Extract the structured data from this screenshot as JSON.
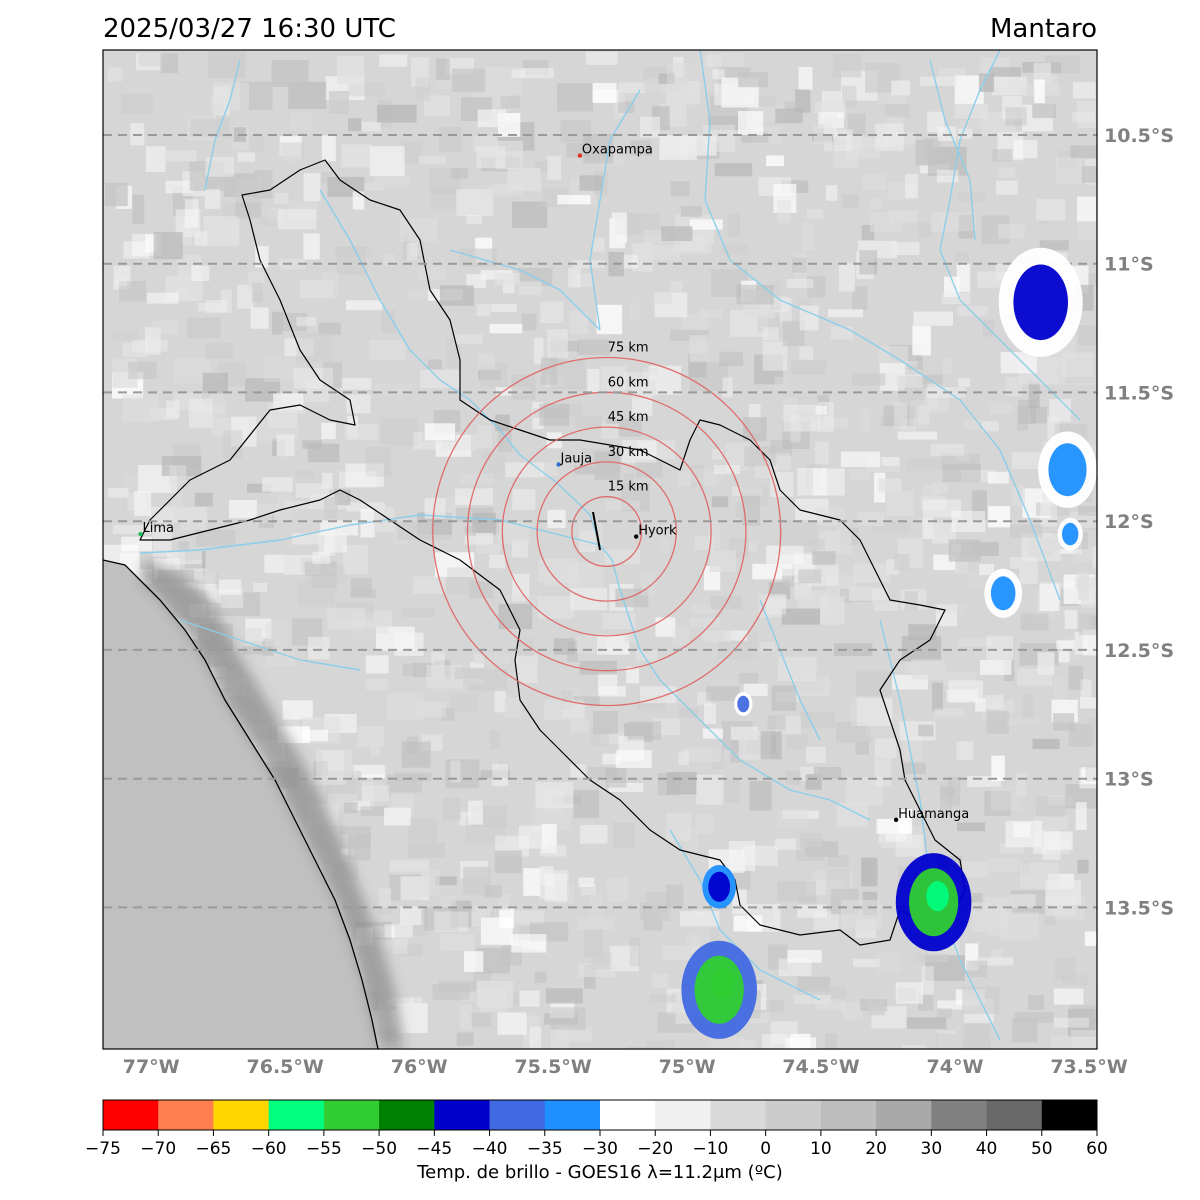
{
  "header": {
    "timestamp": "2025/03/27 16:30 UTC",
    "region": "Mantaro"
  },
  "map": {
    "lon_range": [
      -77.18,
      -73.47
    ],
    "lat_range": [
      -14.05,
      -10.17
    ],
    "lat_gridlines": [
      -10.5,
      -11.0,
      -11.5,
      -12.0,
      -12.5,
      -13.0,
      -13.5
    ],
    "lat_labels": [
      "10.5°S",
      "11°S",
      "11.5°S",
      "12°S",
      "12.5°S",
      "13°S",
      "13.5°S"
    ],
    "lon_ticks": [
      -77.0,
      -76.5,
      -76.0,
      -75.5,
      -75.0,
      -74.5,
      -74.0,
      -73.5
    ],
    "lon_labels": [
      "77°W",
      "76.5°W",
      "76°W",
      "75.5°W",
      "75°W",
      "74.5°W",
      "74°W",
      "73.5°W"
    ],
    "cities": [
      {
        "name": "Oxapampa",
        "lon": -75.4,
        "lat": -10.58,
        "color": "#e03020"
      },
      {
        "name": "Jauja",
        "lon": -75.48,
        "lat": -11.78,
        "color": "#3070d0"
      },
      {
        "name": "Lima",
        "lon": -77.04,
        "lat": -12.05,
        "color": "#20c060"
      },
      {
        "name": "Hyork",
        "lon": -75.19,
        "lat": -12.06,
        "color": "#000000"
      },
      {
        "name": "Huamanga",
        "lon": -74.22,
        "lat": -13.16,
        "color": "#000000"
      }
    ],
    "radar_center": {
      "lon": -75.3,
      "lat": -12.04
    },
    "range_rings": [
      {
        "radius_km": 15,
        "label": "15 km"
      },
      {
        "radius_km": 30,
        "label": "30 km"
      },
      {
        "radius_km": 45,
        "label": "45 km"
      },
      {
        "radius_km": 60,
        "label": "60 km"
      },
      {
        "radius_km": 75,
        "label": "75 km"
      }
    ],
    "cold_cells": [
      {
        "lon": -73.68,
        "lat": -11.15,
        "top_c": -42,
        "size": 1.0
      },
      {
        "lon": -73.58,
        "lat": -11.8,
        "top_c": -35,
        "size": 0.7
      },
      {
        "lon": -74.08,
        "lat": -13.48,
        "top_c": -54,
        "size": 0.9
      },
      {
        "lon": -74.88,
        "lat": -13.82,
        "top_c": -52,
        "size": 0.9
      },
      {
        "lon": -74.88,
        "lat": -13.42,
        "top_c": -44,
        "size": 0.4
      },
      {
        "lon": -73.82,
        "lat": -12.28,
        "top_c": -33,
        "size": 0.45
      },
      {
        "lon": -73.57,
        "lat": -12.05,
        "top_c": -33,
        "size": 0.3
      },
      {
        "lon": -74.79,
        "lat": -12.71,
        "top_c": -40,
        "size": 0.22
      }
    ],
    "colors": {
      "basin_outline": "#000000",
      "rivers": "#87ceeb",
      "gridlines": "#999999",
      "rings": "#e06060",
      "ocean": "#c0c0c0"
    }
  },
  "colorbar": {
    "ticks": [
      "−75",
      "−70",
      "−65",
      "−60",
      "−55",
      "−50",
      "−45",
      "−40",
      "−35",
      "−30",
      "−20",
      "−10",
      "0",
      "10",
      "20",
      "30",
      "40",
      "50",
      "60"
    ],
    "colors": [
      "#ff0000",
      "#ff7f50",
      "#ffd700",
      "#00ff7f",
      "#32cd32",
      "#008000",
      "#0000cd",
      "#4169e1",
      "#1e90ff",
      "#ffffff",
      "#f0f0f0",
      "#d9d9d9",
      "#cccccc",
      "#bebebe",
      "#a9a9a9",
      "#808080",
      "#696969",
      "#000000"
    ],
    "label": "Temp. de brillo - GOES16 λ=11.2μm (ºC)"
  }
}
